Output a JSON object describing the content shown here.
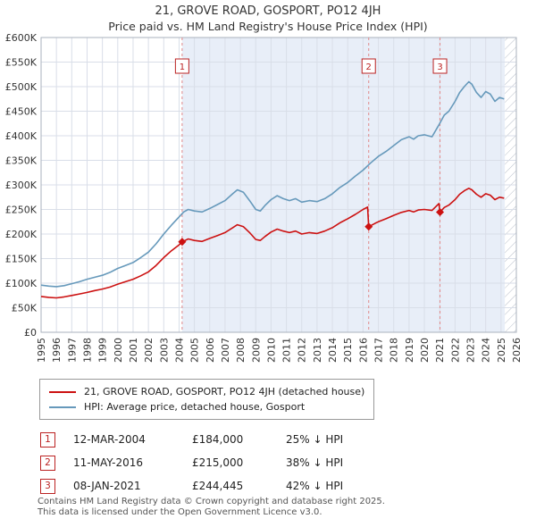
{
  "header": {
    "title": "21, GROVE ROAD, GOSPORT, PO12 4JH",
    "subtitle": "Price paid vs. HM Land Registry's House Price Index (HPI)"
  },
  "chart_data": {
    "type": "line",
    "x_range": [
      1995,
      2026
    ],
    "y_range": [
      0,
      600
    ],
    "y_unit": "£K",
    "x_ticks": [
      1995,
      1996,
      1997,
      1998,
      1999,
      2000,
      2001,
      2002,
      2003,
      2004,
      2005,
      2006,
      2007,
      2008,
      2009,
      2010,
      2011,
      2012,
      2013,
      2014,
      2015,
      2016,
      2017,
      2018,
      2019,
      2020,
      2021,
      2022,
      2023,
      2024,
      2025,
      2026
    ],
    "y_ticks": [
      [
        0,
        "£0"
      ],
      [
        50,
        "£50K"
      ],
      [
        100,
        "£100K"
      ],
      [
        150,
        "£150K"
      ],
      [
        200,
        "£200K"
      ],
      [
        250,
        "£250K"
      ],
      [
        300,
        "£300K"
      ],
      [
        350,
        "£350K"
      ],
      [
        400,
        "£400K"
      ],
      [
        450,
        "£450K"
      ],
      [
        500,
        "£500K"
      ],
      [
        550,
        "£550K"
      ],
      [
        600,
        "£600K"
      ]
    ],
    "shade_start": 2004.2,
    "hatch_start": 2025.25,
    "colors": {
      "shade": "#e8eef8",
      "grid": "#d9dee8",
      "border": "#aab1bc",
      "sale_line": "#e08989",
      "sale_box": "#bb2222",
      "property": "#cc1111",
      "hpi": "#6699bb"
    },
    "series": [
      {
        "name": "21, GROVE ROAD, GOSPORT, PO12 4JH (detached house)",
        "color": "#cc1111",
        "points": [
          [
            1995,
            73
          ],
          [
            1995.5,
            71
          ],
          [
            1996,
            70
          ],
          [
            1996.5,
            72
          ],
          [
            1997,
            75
          ],
          [
            1997.5,
            78
          ],
          [
            1998,
            81
          ],
          [
            1998.5,
            85
          ],
          [
            1999,
            88
          ],
          [
            1999.5,
            92
          ],
          [
            2000,
            98
          ],
          [
            2000.5,
            103
          ],
          [
            2001,
            108
          ],
          [
            2001.5,
            115
          ],
          [
            2002,
            123
          ],
          [
            2002.5,
            136
          ],
          [
            2003,
            152
          ],
          [
            2003.5,
            166
          ],
          [
            2004,
            178
          ],
          [
            2004.2,
            184
          ],
          [
            2004.6,
            190
          ],
          [
            2005,
            187
          ],
          [
            2005.5,
            185
          ],
          [
            2006,
            191
          ],
          [
            2006.5,
            197
          ],
          [
            2007,
            203
          ],
          [
            2007.5,
            213
          ],
          [
            2007.8,
            219
          ],
          [
            2008.2,
            215
          ],
          [
            2008.6,
            203
          ],
          [
            2009,
            189
          ],
          [
            2009.3,
            187
          ],
          [
            2009.6,
            195
          ],
          [
            2010,
            204
          ],
          [
            2010.4,
            210
          ],
          [
            2010.8,
            206
          ],
          [
            2011.2,
            203
          ],
          [
            2011.6,
            206
          ],
          [
            2012,
            200
          ],
          [
            2012.5,
            203
          ],
          [
            2013,
            201
          ],
          [
            2013.5,
            206
          ],
          [
            2014,
            213
          ],
          [
            2014.5,
            223
          ],
          [
            2015,
            231
          ],
          [
            2015.5,
            240
          ],
          [
            2016,
            250
          ],
          [
            2016.3,
            255
          ],
          [
            2016.37,
            215
          ],
          [
            2016.8,
            222
          ],
          [
            2017,
            225
          ],
          [
            2017.5,
            231
          ],
          [
            2018,
            238
          ],
          [
            2018.5,
            244
          ],
          [
            2019,
            248
          ],
          [
            2019.3,
            245
          ],
          [
            2019.6,
            249
          ],
          [
            2020,
            250
          ],
          [
            2020.5,
            248
          ],
          [
            2020.95,
            262
          ],
          [
            2021.02,
            244.445
          ],
          [
            2021.3,
            254
          ],
          [
            2021.6,
            259
          ],
          [
            2022,
            270
          ],
          [
            2022.3,
            281
          ],
          [
            2022.6,
            288
          ],
          [
            2022.9,
            293
          ],
          [
            2023.1,
            290
          ],
          [
            2023.4,
            281
          ],
          [
            2023.7,
            275
          ],
          [
            2024,
            282
          ],
          [
            2024.3,
            279
          ],
          [
            2024.6,
            270
          ],
          [
            2024.9,
            275
          ],
          [
            2025.2,
            273
          ]
        ]
      },
      {
        "name": "HPI: Average price, detached house, Gosport",
        "color": "#6699bb",
        "points": [
          [
            1995,
            96
          ],
          [
            1995.5,
            94
          ],
          [
            1996,
            93
          ],
          [
            1996.5,
            95
          ],
          [
            1997,
            99
          ],
          [
            1997.5,
            103
          ],
          [
            1998,
            108
          ],
          [
            1998.5,
            112
          ],
          [
            1999,
            116
          ],
          [
            1999.5,
            122
          ],
          [
            2000,
            130
          ],
          [
            2000.5,
            136
          ],
          [
            2001,
            142
          ],
          [
            2001.5,
            152
          ],
          [
            2002,
            163
          ],
          [
            2002.5,
            180
          ],
          [
            2003,
            200
          ],
          [
            2003.5,
            218
          ],
          [
            2004,
            235
          ],
          [
            2004.3,
            245
          ],
          [
            2004.6,
            250
          ],
          [
            2005,
            247
          ],
          [
            2005.5,
            245
          ],
          [
            2006,
            252
          ],
          [
            2006.5,
            260
          ],
          [
            2007,
            268
          ],
          [
            2007.5,
            282
          ],
          [
            2007.8,
            290
          ],
          [
            2008.2,
            285
          ],
          [
            2008.6,
            268
          ],
          [
            2009,
            250
          ],
          [
            2009.3,
            247
          ],
          [
            2009.6,
            258
          ],
          [
            2010,
            270
          ],
          [
            2010.4,
            278
          ],
          [
            2010.8,
            272
          ],
          [
            2011.2,
            268
          ],
          [
            2011.6,
            272
          ],
          [
            2012,
            265
          ],
          [
            2012.5,
            268
          ],
          [
            2013,
            266
          ],
          [
            2013.5,
            272
          ],
          [
            2014,
            282
          ],
          [
            2014.5,
            295
          ],
          [
            2015,
            305
          ],
          [
            2015.5,
            318
          ],
          [
            2016,
            330
          ],
          [
            2016.5,
            345
          ],
          [
            2017,
            358
          ],
          [
            2017.5,
            368
          ],
          [
            2018,
            380
          ],
          [
            2018.5,
            392
          ],
          [
            2019,
            398
          ],
          [
            2019.3,
            393
          ],
          [
            2019.6,
            400
          ],
          [
            2020,
            402
          ],
          [
            2020.5,
            398
          ],
          [
            2021,
            425
          ],
          [
            2021.3,
            442
          ],
          [
            2021.6,
            450
          ],
          [
            2022,
            470
          ],
          [
            2022.3,
            488
          ],
          [
            2022.6,
            500
          ],
          [
            2022.9,
            510
          ],
          [
            2023.1,
            505
          ],
          [
            2023.4,
            488
          ],
          [
            2023.7,
            478
          ],
          [
            2024,
            490
          ],
          [
            2024.3,
            485
          ],
          [
            2024.6,
            470
          ],
          [
            2024.9,
            478
          ],
          [
            2025.2,
            475
          ]
        ]
      }
    ],
    "markers": [
      {
        "label": "1",
        "x": 2004.2,
        "y": 184
      },
      {
        "label": "2",
        "x": 2016.37,
        "y": 215
      },
      {
        "label": "3",
        "x": 2021.02,
        "y": 244.445
      }
    ]
  },
  "transactions": {
    "rows": [
      {
        "n": "1",
        "date": "12-MAR-2004",
        "price": "£184,000",
        "vs_hpi": "25% ↓ HPI"
      },
      {
        "n": "2",
        "date": "11-MAY-2016",
        "price": "£215,000",
        "vs_hpi": "38% ↓ HPI"
      },
      {
        "n": "3",
        "date": "08-JAN-2021",
        "price": "£244,445",
        "vs_hpi": "42% ↓ HPI"
      }
    ]
  },
  "footer": {
    "line1": "Contains HM Land Registry data © Crown copyright and database right 2025.",
    "line2": "This data is licensed under the Open Government Licence v3.0."
  }
}
